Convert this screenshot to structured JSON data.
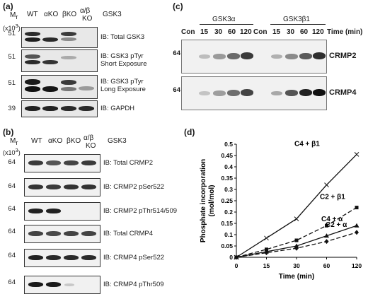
{
  "panels": {
    "a": {
      "label": "(a)",
      "mr_label": "M",
      "mr_sub": "r",
      "mr_scale": "(x10",
      "mr_scale_exp": "3",
      "mr_scale_end": ")",
      "lanes": [
        "WT",
        "αKO",
        "βKO",
        "α/β",
        "KO"
      ],
      "lane_group": "GSK3",
      "blots": [
        {
          "mw": "51",
          "label": "IB: Total GSK3"
        },
        {
          "mw": "51",
          "label": "IB: GSK3 pTyr",
          "label2": "Short Exposure"
        },
        {
          "mw": "51",
          "label": "IB: GSK3 pTyr",
          "label2": "Long Exposure"
        },
        {
          "mw": "39",
          "label": "IB: GAPDH"
        }
      ]
    },
    "b": {
      "label": "(b)",
      "mr_label": "M",
      "mr_sub": "r",
      "mr_scale": "(x10",
      "mr_scale_exp": "3",
      "mr_scale_end": ")",
      "lanes": [
        "WT",
        "αKO",
        "βKO",
        "α/β",
        "KO"
      ],
      "lane_group": "GSK3",
      "blots": [
        {
          "mw": "64",
          "label": "IB: Total CRMP2"
        },
        {
          "mw": "64",
          "label": "IB: CRMP2 pSer522"
        },
        {
          "mw": "64",
          "label": "IB: CRMP2 pThr514/509"
        },
        {
          "mw": "64",
          "label": "IB: Total CRMP4"
        },
        {
          "mw": "64",
          "label": "IB: CRMP4 pSer522"
        },
        {
          "mw": "64",
          "label": "IB: CRMP4 pThr509"
        }
      ]
    },
    "c": {
      "label": "(c)",
      "group_alpha": "GSK3α",
      "group_beta": "GSK3β1",
      "lanes": [
        "Con",
        "15",
        "30",
        "60",
        "120",
        "Con",
        "15",
        "30",
        "60",
        "120"
      ],
      "time_label": "Time (min)",
      "blots": [
        {
          "mw": "64",
          "label": "CRMP2"
        },
        {
          "mw": "64",
          "label": "CRMP4"
        }
      ]
    },
    "d": {
      "label": "(d)"
    }
  },
  "chart_data": {
    "type": "line",
    "title": "",
    "xlabel": "Time (min)",
    "ylabel": "Phosphate incorporation",
    "ylabel2": "(mol/mol)",
    "x": [
      0,
      15,
      30,
      60,
      120
    ],
    "x_tick_labels": [
      "0",
      "15",
      "30",
      "60",
      "120"
    ],
    "y_ticks": [
      "0",
      "0.05",
      "0.1",
      "0.15",
      "0.2",
      "0.25",
      "0.3",
      "0.35",
      "0.4",
      "0.45",
      "0.5"
    ],
    "ylim": [
      0,
      0.5
    ],
    "grid": false,
    "series": [
      {
        "name": "C4 + β1",
        "values": [
          0.0,
          0.085,
          0.17,
          0.32,
          0.455
        ],
        "marker": "x",
        "dash": false
      },
      {
        "name": "C2 + β1",
        "values": [
          0.0,
          0.035,
          0.075,
          0.14,
          0.22
        ],
        "marker": "square",
        "dash": true
      },
      {
        "name": "C4 + α",
        "values": [
          0.0,
          0.025,
          0.05,
          0.095,
          0.14
        ],
        "marker": "triangle",
        "dash": false
      },
      {
        "name": "C2 + α",
        "values": [
          0.0,
          0.02,
          0.04,
          0.07,
          0.11
        ],
        "marker": "diamond",
        "dash": true
      }
    ]
  }
}
